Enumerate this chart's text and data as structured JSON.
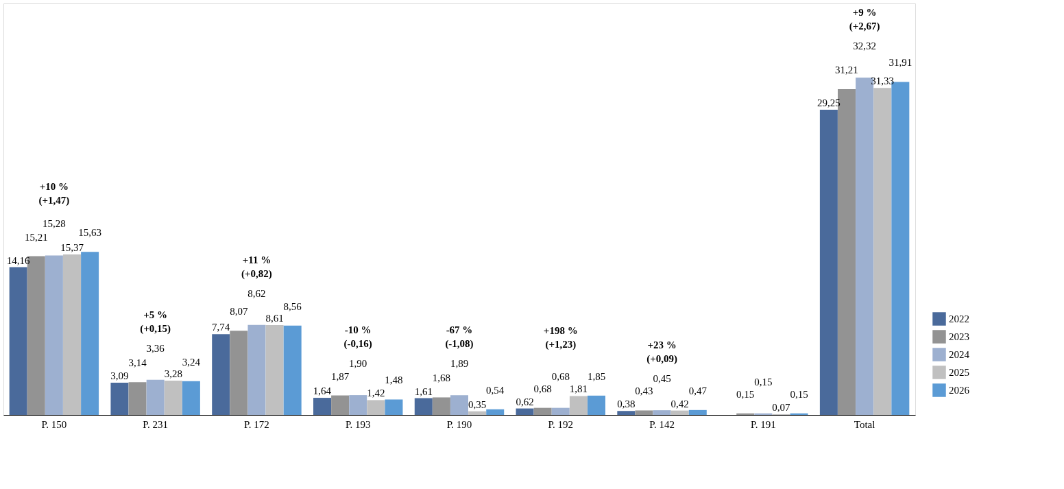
{
  "chart_data": {
    "type": "bar",
    "categories": [
      "P. 150",
      "P. 231",
      "P. 172",
      "P. 193",
      "P. 190",
      "P. 192",
      "P. 142",
      "P. 191",
      "Total"
    ],
    "series": [
      {
        "name": "2022",
        "color": "#4a6a9b",
        "values": [
          14.16,
          3.09,
          7.74,
          1.64,
          1.61,
          0.62,
          0.38,
          null,
          29.25
        ],
        "value_labels": [
          "14,16",
          "3,09",
          "7,74",
          "1,64",
          "1,61",
          "0,62",
          "0,38",
          null,
          "29,25"
        ]
      },
      {
        "name": "2023",
        "color": "#939393",
        "values": [
          15.21,
          3.14,
          8.07,
          1.87,
          1.68,
          0.68,
          0.43,
          0.15,
          31.21
        ],
        "value_labels": [
          "15,21",
          "3,14",
          "8,07",
          "1,87",
          "1,68",
          "0,68",
          "0,43",
          "0,15",
          "31,21"
        ]
      },
      {
        "name": "2024",
        "color": "#9db0d0",
        "values": [
          15.28,
          3.36,
          8.62,
          1.9,
          1.89,
          0.68,
          0.45,
          0.15,
          32.32
        ],
        "value_labels": [
          "15,28",
          "3,36",
          "8,62",
          "1,90",
          "1,89",
          "0,68",
          "0,45",
          "0,15",
          "32,32"
        ]
      },
      {
        "name": "2025",
        "color": "#c0c0c0",
        "values": [
          15.37,
          3.28,
          8.61,
          1.42,
          0.35,
          1.81,
          0.42,
          0.07,
          31.33
        ],
        "value_labels": [
          "15,37",
          "3,28",
          "8,61",
          "1,42",
          "0,35",
          "1,81",
          "0,42",
          "0,07",
          "31,33"
        ]
      },
      {
        "name": "2026",
        "color": "#5b9bd5",
        "values": [
          15.63,
          3.24,
          8.56,
          1.48,
          0.54,
          1.85,
          0.47,
          0.15,
          31.91
        ],
        "value_labels": [
          "15,63",
          "3,24",
          "8,56",
          "1,48",
          "0,54",
          "1,85",
          "0,47",
          "0,15",
          "31,91"
        ]
      }
    ],
    "annotations": [
      "+10 %\n(+1,47)",
      "+5 %\n(+0,15)",
      "+11 %\n(+0,82)",
      "-10 %\n(-0,16)",
      "-67 %\n(-1,08)",
      "+198 %\n(+1,23)",
      "+23 %\n(+0,09)",
      "+9 %\n(+2,67)"
    ],
    "legend": "bottom right",
    "grid": false
  }
}
